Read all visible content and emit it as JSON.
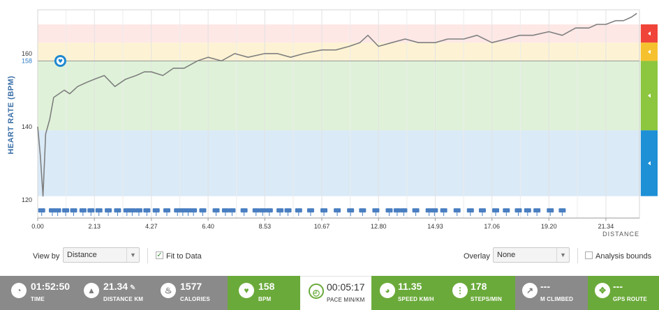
{
  "chart_data": {
    "type": "line",
    "ylabel": "HEART RATE (BPM)",
    "xlabel": "DISTANCE",
    "x_ticks": [
      "0.00",
      "2.13",
      "4.27",
      "6.40",
      "8.53",
      "10.67",
      "12.80",
      "14.93",
      "17.06",
      "19.20",
      "21.34"
    ],
    "y_ticks": [
      "120",
      "140",
      "160"
    ],
    "ylim": [
      115,
      172
    ],
    "xlim": [
      0,
      22.6
    ],
    "current_marker": {
      "value": "158",
      "x": 0.85
    },
    "zones": [
      {
        "from": 121,
        "to": 139,
        "color": "#daeaf7"
      },
      {
        "from": 139,
        "to": 158,
        "color": "#dff2d9"
      },
      {
        "from": 158,
        "to": 163,
        "color": "#fdf3d4"
      },
      {
        "from": 163,
        "to": 168,
        "color": "#fde8e6"
      }
    ],
    "zone_tabs": [
      "#f0443a",
      "#f5c12e",
      "#8dc63f",
      "#1e90d6"
    ],
    "series": [
      {
        "x": [
          0.0,
          0.1,
          0.2,
          0.3,
          0.45,
          0.6,
          0.8,
          1.0,
          1.2,
          1.5,
          1.8,
          2.13,
          2.5,
          2.9,
          3.3,
          3.7,
          4.0,
          4.27,
          4.7,
          5.1,
          5.5,
          6.0,
          6.4,
          6.9,
          7.4,
          7.9,
          8.53,
          9.0,
          9.5,
          10.0,
          10.67,
          11.2,
          11.7,
          12.1,
          12.4,
          12.8,
          13.3,
          13.8,
          14.3,
          14.93,
          15.4,
          16.0,
          16.5,
          17.06,
          17.6,
          18.1,
          18.6,
          19.2,
          19.7,
          20.2,
          20.7,
          21.0,
          21.34,
          21.7,
          22.0,
          22.3,
          22.5
        ],
        "y": [
          140,
          132,
          121,
          138,
          142,
          148,
          149,
          150,
          149,
          151,
          152,
          153,
          154,
          151,
          153,
          154,
          155,
          155,
          154,
          156,
          156,
          158,
          159,
          158,
          160,
          159,
          160,
          160,
          159,
          160,
          161,
          161,
          162,
          163,
          165,
          162,
          163,
          164,
          163,
          163,
          164,
          164,
          165,
          163,
          164,
          165,
          165,
          166,
          165,
          167,
          167,
          168,
          168,
          169,
          169,
          170,
          171
        ]
      }
    ],
    "laps": [
      0.15,
      0.55,
      0.75,
      1.05,
      1.35,
      1.7,
      2.0,
      2.3,
      2.65,
      3.0,
      3.35,
      3.55,
      3.8,
      4.1,
      4.45,
      4.85,
      5.25,
      5.45,
      5.65,
      5.85,
      6.2,
      6.7,
      7.05,
      7.3,
      7.75,
      8.2,
      8.45,
      8.7,
      9.1,
      9.4,
      9.8,
      10.25,
      10.75,
      11.25,
      11.75,
      12.2,
      12.7,
      13.2,
      13.5,
      13.75,
      14.2,
      14.7,
      14.9,
      15.25,
      15.75,
      16.25,
      16.7,
      17.2,
      17.6,
      18.05,
      18.4,
      18.75,
      19.25,
      19.7
    ]
  },
  "controls": {
    "view_by_label": "View by",
    "view_by_value": "Distance",
    "fit_label": "Fit to Data",
    "overlay_label": "Overlay",
    "overlay_value": "None",
    "analysis_label": "Analysis bounds"
  },
  "stats": [
    {
      "value": "01:52:50",
      "label": "TIME",
      "style": "grey",
      "icon": "clock-icon"
    },
    {
      "value": "21.34",
      "label": "DISTANCE KM",
      "style": "grey",
      "icon": "road-icon"
    },
    {
      "value": "1577",
      "label": "CALORIES",
      "style": "grey",
      "icon": "flame-icon"
    },
    {
      "value": "158",
      "label": "BPM",
      "style": "green",
      "icon": "heart-icon"
    },
    {
      "value": "00:05:17",
      "label": "PACE MIN/KM",
      "style": "white",
      "icon": "speedometer-icon"
    },
    {
      "value": "11.35",
      "label": "SPEED KM/H",
      "style": "green",
      "icon": "gauge-icon"
    },
    {
      "value": "178",
      "label": "STEPS/MIN",
      "style": "green",
      "icon": "footsteps-icon"
    },
    {
      "value": "---",
      "label": "M CLIMBED",
      "style": "grey",
      "icon": "climb-icon"
    },
    {
      "value": "---",
      "label": "GPS ROUTE",
      "style": "green",
      "icon": "gps-icon"
    }
  ]
}
